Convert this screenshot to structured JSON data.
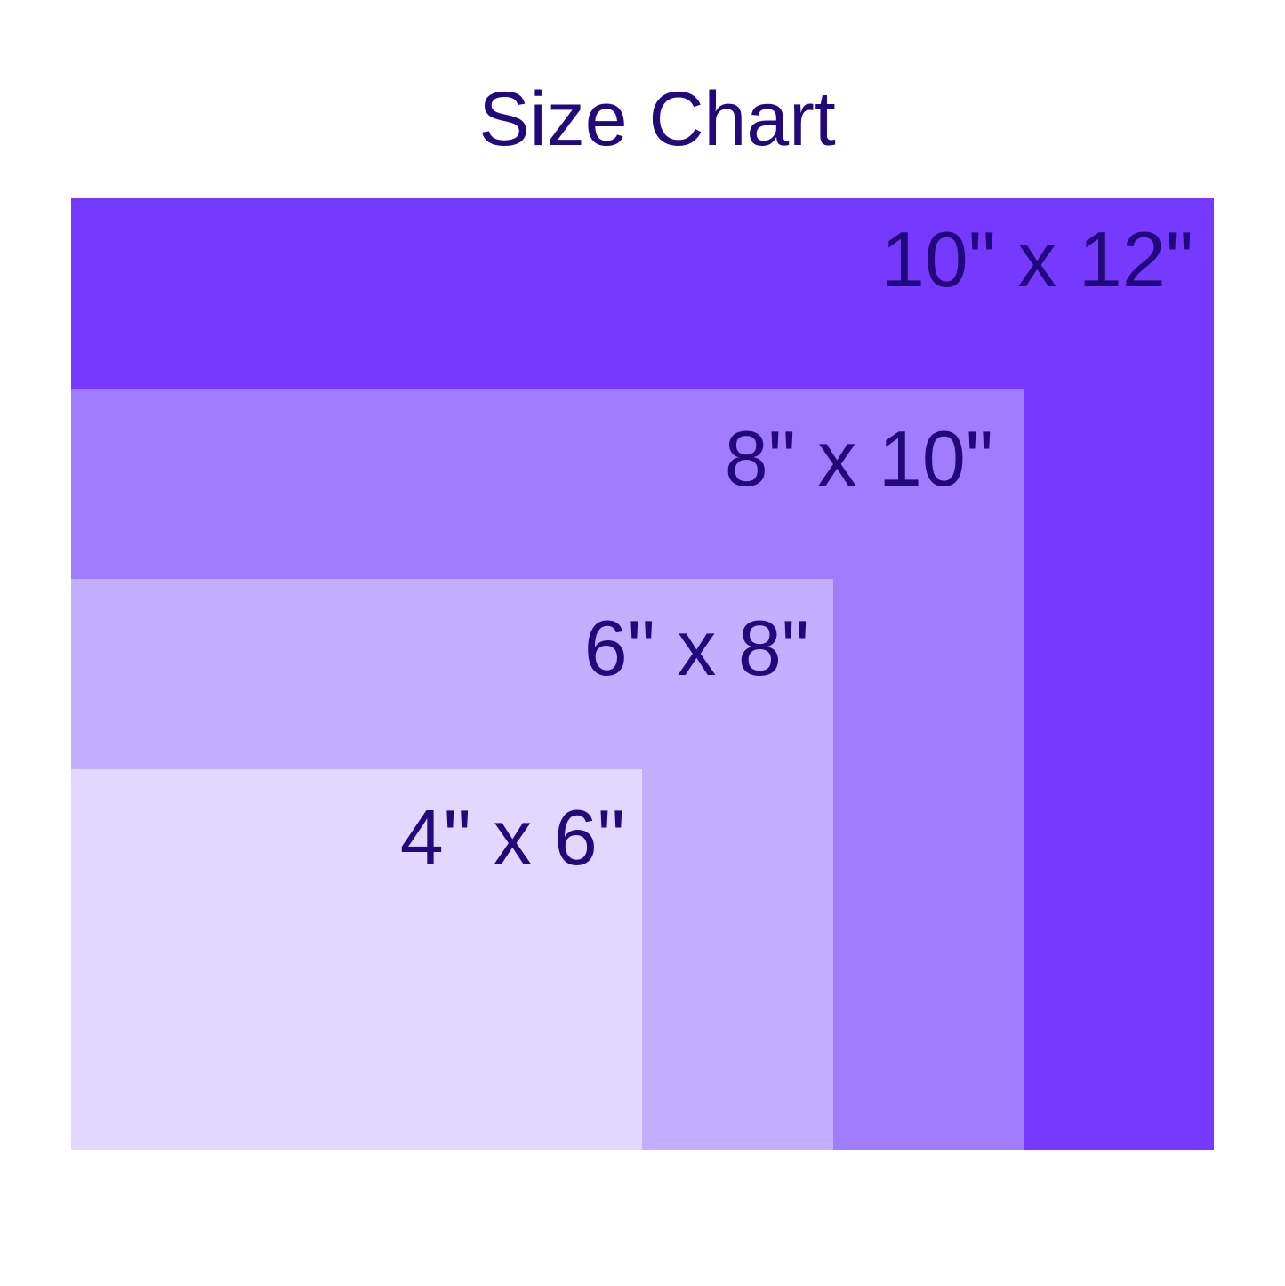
{
  "title": "Size Chart",
  "text_color": "#22087a",
  "sizes": [
    {
      "label": "10\" x 12\"",
      "color": "#7539ff"
    },
    {
      "label": "8\" x 10\"",
      "color": "#a07dff"
    },
    {
      "label": "6\" x 8\"",
      "color": "#c4aeff"
    },
    {
      "label": "4\" x 6\"",
      "color": "#e2d7ff"
    }
  ]
}
